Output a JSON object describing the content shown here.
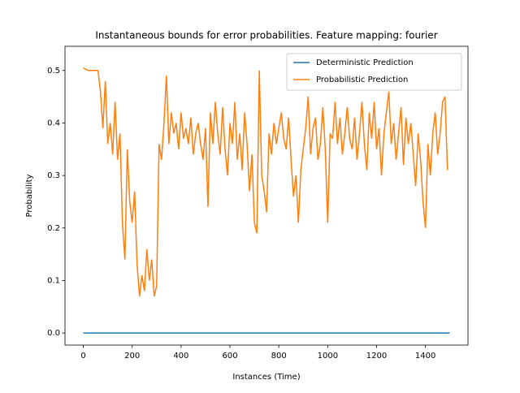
{
  "chart_data": {
    "type": "line",
    "title": "Instantaneous bounds for error probabilities. Feature mapping: fourier",
    "x_label": "Instances (Time)",
    "y_label": "Probability",
    "xlim": [
      -75,
      1574
    ],
    "ylim": [
      -0.023,
      0.546
    ],
    "xticks": [
      0,
      200,
      400,
      600,
      800,
      1000,
      1200,
      1400
    ],
    "yticks": [
      {
        "value": 0,
        "label": "0.0"
      },
      0.1,
      0.2,
      0.3,
      0.4,
      0.5
    ],
    "legend": "upper right",
    "series": [
      {
        "name": "Deterministic Prediction",
        "color": "#1f77b4",
        "x": [
          0,
          1499
        ],
        "values": [
          0,
          0
        ]
      },
      {
        "name": "Probabilistic Prediction",
        "color": "#ff7f0e",
        "x": [
          0,
          10,
          20,
          30,
          40,
          50,
          60,
          70,
          80,
          90,
          100,
          110,
          120,
          130,
          140,
          150,
          160,
          170,
          180,
          190,
          200,
          210,
          220,
          230,
          240,
          250,
          260,
          270,
          280,
          290,
          300,
          310,
          320,
          330,
          340,
          350,
          360,
          370,
          380,
          390,
          400,
          410,
          420,
          430,
          440,
          450,
          460,
          470,
          480,
          490,
          500,
          510,
          520,
          530,
          540,
          550,
          560,
          570,
          580,
          590,
          600,
          610,
          620,
          630,
          640,
          650,
          660,
          670,
          680,
          690,
          700,
          710,
          720,
          730,
          740,
          750,
          760,
          770,
          780,
          790,
          800,
          810,
          820,
          830,
          840,
          850,
          860,
          870,
          880,
          890,
          900,
          910,
          920,
          930,
          940,
          950,
          960,
          970,
          980,
          990,
          1000,
          1010,
          1020,
          1030,
          1040,
          1050,
          1060,
          1070,
          1080,
          1090,
          1100,
          1110,
          1120,
          1130,
          1140,
          1150,
          1160,
          1170,
          1180,
          1190,
          1200,
          1210,
          1220,
          1230,
          1240,
          1250,
          1260,
          1270,
          1280,
          1290,
          1300,
          1310,
          1320,
          1330,
          1340,
          1350,
          1360,
          1370,
          1380,
          1390,
          1400,
          1410,
          1420,
          1430,
          1440,
          1450,
          1460,
          1470,
          1480,
          1490
        ],
        "values": [
          0.505,
          0.502,
          0.5,
          0.5,
          0.5,
          0.5,
          0.5,
          0.46,
          0.39,
          0.48,
          0.36,
          0.4,
          0.34,
          0.44,
          0.33,
          0.38,
          0.21,
          0.14,
          0.35,
          0.25,
          0.21,
          0.27,
          0.13,
          0.07,
          0.11,
          0.08,
          0.16,
          0.1,
          0.14,
          0.07,
          0.09,
          0.36,
          0.33,
          0.4,
          0.49,
          0.36,
          0.42,
          0.38,
          0.4,
          0.35,
          0.42,
          0.37,
          0.39,
          0.36,
          0.41,
          0.34,
          0.38,
          0.4,
          0.36,
          0.33,
          0.39,
          0.24,
          0.42,
          0.36,
          0.44,
          0.38,
          0.34,
          0.43,
          0.35,
          0.3,
          0.4,
          0.36,
          0.44,
          0.33,
          0.38,
          0.31,
          0.42,
          0.36,
          0.27,
          0.34,
          0.21,
          0.19,
          0.5,
          0.3,
          0.27,
          0.23,
          0.38,
          0.34,
          0.4,
          0.36,
          0.39,
          0.42,
          0.37,
          0.35,
          0.41,
          0.33,
          0.26,
          0.3,
          0.21,
          0.31,
          0.35,
          0.39,
          0.45,
          0.34,
          0.39,
          0.41,
          0.33,
          0.36,
          0.43,
          0.35,
          0.21,
          0.38,
          0.37,
          0.44,
          0.36,
          0.41,
          0.34,
          0.38,
          0.43,
          0.37,
          0.35,
          0.41,
          0.33,
          0.38,
          0.44,
          0.36,
          0.31,
          0.42,
          0.37,
          0.44,
          0.35,
          0.39,
          0.3,
          0.38,
          0.42,
          0.46,
          0.36,
          0.4,
          0.33,
          0.38,
          0.43,
          0.32,
          0.41,
          0.36,
          0.4,
          0.34,
          0.28,
          0.38,
          0.33,
          0.25,
          0.2,
          0.36,
          0.3,
          0.38,
          0.42,
          0.34,
          0.38,
          0.44,
          0.45,
          0.31
        ]
      }
    ]
  }
}
